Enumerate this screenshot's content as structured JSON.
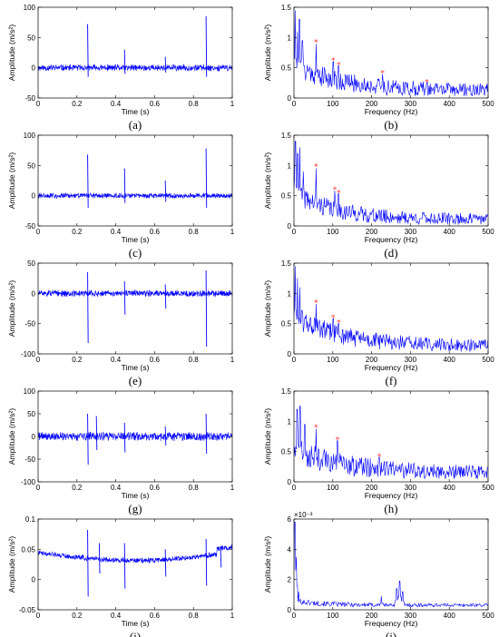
{
  "figure": {
    "colors": {
      "trace": "#0000ff",
      "marker": "#ff3333",
      "axis": "#000000"
    }
  },
  "chart_data": [
    {
      "id": "a",
      "caption": "(a)",
      "type": "line",
      "domain": "time",
      "xlabel": "Time (s)",
      "ylabel": "Amplitude (m/s²)",
      "xlim": [
        0,
        1
      ],
      "ylim": [
        -50,
        100
      ],
      "xticks": [
        0,
        0.2,
        0.4,
        0.6,
        0.8,
        1
      ],
      "xticklabels": [
        "0",
        "0.2",
        "0.4",
        "0.6",
        "0.8",
        "1"
      ],
      "yticks": [
        -50,
        0,
        50,
        100
      ],
      "yticklabels": [
        "-50",
        "0",
        "50",
        "100"
      ],
      "noise": {
        "baseline": 0,
        "amplitude": 6,
        "seed": 11
      },
      "spikes": [
        {
          "x": 0.255,
          "up": 72,
          "down": -15
        },
        {
          "x": 0.445,
          "up": 30,
          "down": -10
        },
        {
          "x": 0.655,
          "up": 18,
          "down": -8
        },
        {
          "x": 0.865,
          "up": 85,
          "down": -15
        }
      ]
    },
    {
      "id": "b",
      "caption": "(b)",
      "type": "line",
      "domain": "frequency",
      "xlabel": "Frequency (Hz)",
      "ylabel": "Amplitude (m/s²)",
      "xlim": [
        0,
        500
      ],
      "ylim": [
        0,
        1.5
      ],
      "xticks": [
        0,
        100,
        200,
        300,
        400,
        500
      ],
      "xticklabels": [
        "0",
        "100",
        "200",
        "300",
        "400",
        "500"
      ],
      "yticks": [
        0,
        0.5,
        1,
        1.5
      ],
      "yticklabels": [
        "0",
        "0.5",
        "1",
        "1.5"
      ],
      "spectrum": {
        "start": 0.55,
        "end": 0.12,
        "decay": 110,
        "noise": 0.2,
        "seed": 21
      },
      "peaks": [
        {
          "f": 3,
          "a": 1.45
        },
        {
          "f": 9,
          "a": 1.1
        },
        {
          "f": 14,
          "a": 1.3
        },
        {
          "f": 22,
          "a": 0.95
        }
      ],
      "markers": [
        {
          "f": 57,
          "a": 0.92
        },
        {
          "f": 101,
          "a": 0.62
        },
        {
          "f": 115,
          "a": 0.55
        },
        {
          "f": 228,
          "a": 0.41
        },
        {
          "f": 342,
          "a": 0.26
        }
      ]
    },
    {
      "id": "c",
      "caption": "(c)",
      "type": "line",
      "domain": "time",
      "xlabel": "Time (s)",
      "ylabel": "Amplitude (m/s²)",
      "xlim": [
        0,
        1
      ],
      "ylim": [
        -50,
        100
      ],
      "xticks": [
        0,
        0.2,
        0.4,
        0.6,
        0.8,
        1
      ],
      "xticklabels": [
        "0",
        "0.2",
        "0.4",
        "0.6",
        "0.8",
        "1"
      ],
      "yticks": [
        -50,
        0,
        50,
        100
      ],
      "yticklabels": [
        "-50",
        "0",
        "50",
        "100"
      ],
      "noise": {
        "baseline": 0,
        "amplitude": 5,
        "seed": 31
      },
      "spikes": [
        {
          "x": 0.255,
          "up": 68,
          "down": -20
        },
        {
          "x": 0.445,
          "up": 45,
          "down": -12
        },
        {
          "x": 0.655,
          "up": 25,
          "down": -10
        },
        {
          "x": 0.865,
          "up": 78,
          "down": -20
        }
      ]
    },
    {
      "id": "d",
      "caption": "(d)",
      "type": "line",
      "domain": "frequency",
      "xlabel": "Frequency (Hz)",
      "ylabel": "Amplitude (m/s²)",
      "xlim": [
        0,
        500
      ],
      "ylim": [
        0,
        1.5
      ],
      "xticks": [
        0,
        100,
        200,
        300,
        400,
        500
      ],
      "xticklabels": [
        "0",
        "100",
        "200",
        "300",
        "400",
        "500"
      ],
      "yticks": [
        0,
        0.5,
        1,
        1.5
      ],
      "yticklabels": [
        "0",
        "0.5",
        "1",
        "1.5"
      ],
      "spectrum": {
        "start": 0.55,
        "end": 0.1,
        "decay": 100,
        "noise": 0.18,
        "seed": 41
      },
      "peaks": [
        {
          "f": 4,
          "a": 1.4
        },
        {
          "f": 10,
          "a": 1.2
        },
        {
          "f": 15,
          "a": 1.3
        },
        {
          "f": 24,
          "a": 0.9
        }
      ],
      "markers": [
        {
          "f": 57,
          "a": 0.98
        },
        {
          "f": 105,
          "a": 0.6
        },
        {
          "f": 115,
          "a": 0.55
        }
      ]
    },
    {
      "id": "e",
      "caption": "(e)",
      "type": "line",
      "domain": "time",
      "xlabel": "Time (s)",
      "ylabel": "Amplitude (m/s²)",
      "xlim": [
        0,
        1
      ],
      "ylim": [
        -100,
        50
      ],
      "xticks": [
        0,
        0.2,
        0.4,
        0.6,
        0.8,
        1
      ],
      "xticklabels": [
        "0",
        "0.2",
        "0.4",
        "0.6",
        "0.8",
        "1"
      ],
      "yticks": [
        -100,
        -50,
        0,
        50
      ],
      "yticklabels": [
        "-100",
        "-50",
        "0",
        "50"
      ],
      "noise": {
        "baseline": 0,
        "amplitude": 6,
        "seed": 51
      },
      "spikes": [
        {
          "x": 0.255,
          "up": 35,
          "down": -82
        },
        {
          "x": 0.445,
          "up": 20,
          "down": -35
        },
        {
          "x": 0.655,
          "up": 15,
          "down": -25
        },
        {
          "x": 0.865,
          "up": 38,
          "down": -88
        }
      ]
    },
    {
      "id": "f",
      "caption": "(f)",
      "type": "line",
      "domain": "frequency",
      "xlabel": "Frequency (Hz)",
      "ylabel": "Amplitude (m/s²)",
      "xlim": [
        0,
        500
      ],
      "ylim": [
        0,
        1.5
      ],
      "xticks": [
        0,
        100,
        200,
        300,
        400,
        500
      ],
      "xticklabels": [
        "0",
        "100",
        "200",
        "300",
        "400",
        "500"
      ],
      "yticks": [
        0,
        0.5,
        1,
        1.5
      ],
      "yticklabels": [
        "0",
        "0.5",
        "1",
        "1.5"
      ],
      "spectrum": {
        "start": 0.6,
        "end": 0.12,
        "decay": 120,
        "noise": 0.2,
        "seed": 61
      },
      "peaks": [
        {
          "f": 3,
          "a": 1.45
        },
        {
          "f": 9,
          "a": 1.25
        },
        {
          "f": 15,
          "a": 1.1
        }
      ],
      "markers": [
        {
          "f": 57,
          "a": 0.85
        },
        {
          "f": 101,
          "a": 0.6
        },
        {
          "f": 115,
          "a": 0.52
        }
      ]
    },
    {
      "id": "g",
      "caption": "(g)",
      "type": "line",
      "domain": "time",
      "xlabel": "Time (s)",
      "ylabel": "Amplitude (m/s²)",
      "xlim": [
        0,
        1
      ],
      "ylim": [
        -100,
        100
      ],
      "xticks": [
        0,
        0.2,
        0.4,
        0.6,
        0.8,
        1
      ],
      "xticklabels": [
        "0",
        "0.2",
        "0.4",
        "0.6",
        "0.8",
        "1"
      ],
      "yticks": [
        -100,
        -50,
        0,
        50,
        100
      ],
      "yticklabels": [
        "-100",
        "-50",
        "0",
        "50",
        "100"
      ],
      "noise": {
        "baseline": 0,
        "amplitude": 11,
        "seed": 71
      },
      "spikes": [
        {
          "x": 0.255,
          "up": 50,
          "down": -62
        },
        {
          "x": 0.3,
          "up": 45,
          "down": -30
        },
        {
          "x": 0.445,
          "up": 30,
          "down": -35
        },
        {
          "x": 0.655,
          "up": 22,
          "down": -20
        },
        {
          "x": 0.865,
          "up": 50,
          "down": -38
        }
      ]
    },
    {
      "id": "h",
      "caption": "(h)",
      "type": "line",
      "domain": "frequency",
      "xlabel": "Frequency (Hz)",
      "ylabel": "Amplitude (m/s²)",
      "xlim": [
        0,
        500
      ],
      "ylim": [
        0,
        1.5
      ],
      "xticks": [
        0,
        100,
        200,
        300,
        400,
        500
      ],
      "xticklabels": [
        "0",
        "100",
        "200",
        "300",
        "400",
        "500"
      ],
      "yticks": [
        0,
        0.5,
        1,
        1.5
      ],
      "yticklabels": [
        "0",
        "0.5",
        "1",
        "1.5"
      ],
      "spectrum": {
        "start": 0.5,
        "end": 0.14,
        "decay": 130,
        "noise": 0.22,
        "seed": 81
      },
      "peaks": [
        {
          "f": 8,
          "a": 1.2
        },
        {
          "f": 16,
          "a": 1.25
        },
        {
          "f": 28,
          "a": 0.95
        }
      ],
      "markers": [
        {
          "f": 57,
          "a": 0.9
        },
        {
          "f": 112,
          "a": 0.7
        },
        {
          "f": 220,
          "a": 0.42
        }
      ]
    },
    {
      "id": "i",
      "caption": "(i)",
      "type": "line",
      "domain": "time",
      "xlabel": "Time (s)",
      "ylabel": "Amplitude (m/s²)",
      "xlim": [
        0,
        1
      ],
      "ylim": [
        -0.05,
        0.1
      ],
      "xticks": [
        0,
        0.2,
        0.4,
        0.6,
        0.8,
        1
      ],
      "xticklabels": [
        "0",
        "0.2",
        "0.4",
        "0.6",
        "0.8",
        "1"
      ],
      "yticks": [
        -0.05,
        0,
        0.05,
        0.1
      ],
      "yticklabels": [
        "-0.05",
        "0",
        "0.05",
        "0.1"
      ],
      "noise": {
        "baseline": 0.045,
        "drift_end": 0.03,
        "amplitude": 0.005,
        "seed": 91
      },
      "spikes": [
        {
          "x": 0.255,
          "up": 0.082,
          "down": -0.028
        },
        {
          "x": 0.315,
          "up": 0.06,
          "down": 0.01
        },
        {
          "x": 0.445,
          "up": 0.06,
          "down": -0.015
        },
        {
          "x": 0.655,
          "up": 0.05,
          "down": 0.005
        },
        {
          "x": 0.865,
          "up": 0.067,
          "down": -0.01
        },
        {
          "x": 0.94,
          "up": 0.05,
          "down": 0.02
        }
      ]
    },
    {
      "id": "j",
      "caption": "(j)",
      "type": "line",
      "domain": "frequency",
      "xlabel": "Frequency (Hz)",
      "ylabel": "Amplitude (m/s²)",
      "xlim": [
        0,
        500
      ],
      "ylim": [
        0,
        0.006
      ],
      "xticks": [
        0,
        100,
        200,
        300,
        400,
        500
      ],
      "xticklabels": [
        "0",
        "100",
        "200",
        "300",
        "400",
        "500"
      ],
      "yticks": [
        0,
        0.002,
        0.004,
        0.006
      ],
      "yticklabels": [
        "0",
        "2",
        "4",
        "6"
      ],
      "exponent_label": "×10⁻³",
      "spectrum": {
        "start": 0.0006,
        "end": 0.0003,
        "decay": 60,
        "noise": 0.0002,
        "seed": 101
      },
      "peaks": [
        {
          "f": 2,
          "a": 0.0058
        },
        {
          "f": 6,
          "a": 0.0035
        },
        {
          "f": 12,
          "a": 0.0012
        },
        {
          "f": 225,
          "a": 0.0009
        },
        {
          "f": 265,
          "a": 0.0014
        },
        {
          "f": 272,
          "a": 0.0019
        },
        {
          "f": 280,
          "a": 0.0012
        }
      ],
      "markers": []
    }
  ]
}
